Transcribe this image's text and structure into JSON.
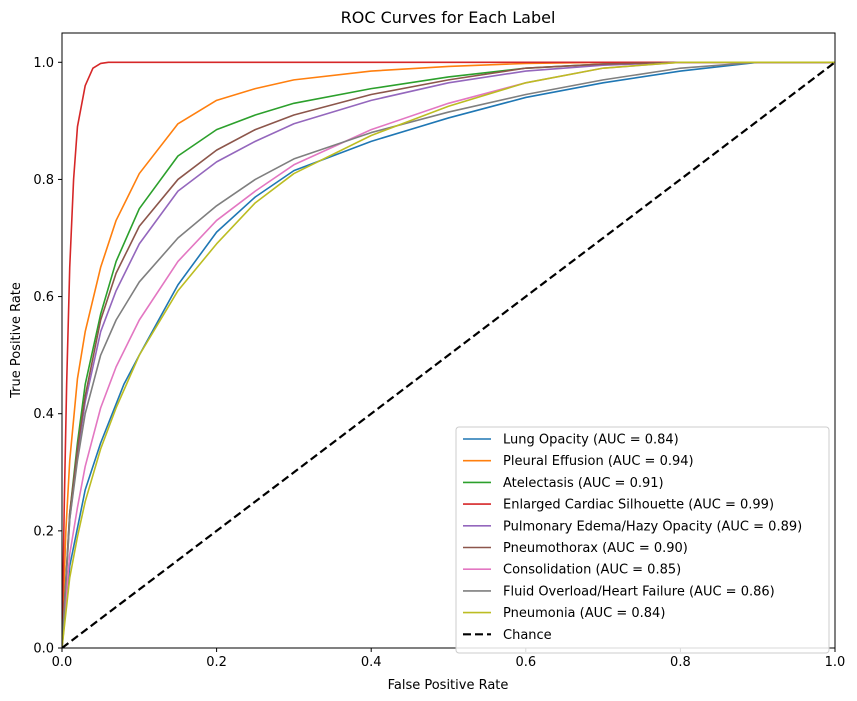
{
  "chart_data": {
    "type": "line",
    "title": "ROC Curves for Each Label",
    "xlabel": "False Positive Rate",
    "ylabel": "True Positive Rate",
    "xlim": [
      0,
      1
    ],
    "ylim": [
      0,
      1.05
    ],
    "xticks": [
      "0.0",
      "0.2",
      "0.4",
      "0.6",
      "0.8",
      "1.0"
    ],
    "yticks": [
      "0.0",
      "0.2",
      "0.4",
      "0.6",
      "0.8",
      "1.0"
    ],
    "grid": false,
    "legend_position": "lower-right",
    "series": [
      {
        "name": "Lung Opacity (AUC = 0.84)",
        "color": "#1f77b4",
        "x": [
          0,
          0.01,
          0.03,
          0.05,
          0.08,
          0.1,
          0.15,
          0.2,
          0.25,
          0.3,
          0.4,
          0.5,
          0.6,
          0.7,
          0.8,
          0.9,
          1.0
        ],
        "y": [
          0,
          0.14,
          0.27,
          0.35,
          0.45,
          0.5,
          0.62,
          0.71,
          0.77,
          0.815,
          0.865,
          0.905,
          0.94,
          0.965,
          0.985,
          1.0,
          1.0
        ]
      },
      {
        "name": "Pleural Effusion (AUC = 0.94)",
        "color": "#ff7f0e",
        "x": [
          0,
          0.005,
          0.01,
          0.02,
          0.03,
          0.05,
          0.07,
          0.1,
          0.15,
          0.2,
          0.25,
          0.3,
          0.4,
          0.5,
          0.6,
          0.7,
          0.8,
          1.0
        ],
        "y": [
          0,
          0.2,
          0.32,
          0.46,
          0.54,
          0.65,
          0.73,
          0.81,
          0.895,
          0.935,
          0.955,
          0.97,
          0.985,
          0.993,
          0.998,
          1.0,
          1.0,
          1.0
        ]
      },
      {
        "name": "Atelectasis (AUC = 0.91)",
        "color": "#2ca02c",
        "x": [
          0,
          0.01,
          0.02,
          0.03,
          0.05,
          0.07,
          0.1,
          0.15,
          0.2,
          0.25,
          0.3,
          0.4,
          0.5,
          0.6,
          0.7,
          0.8,
          1.0
        ],
        "y": [
          0,
          0.23,
          0.35,
          0.45,
          0.57,
          0.66,
          0.75,
          0.84,
          0.885,
          0.91,
          0.93,
          0.955,
          0.975,
          0.99,
          0.997,
          1.0,
          1.0
        ]
      },
      {
        "name": "Enlarged Cardiac Silhouette (AUC = 0.99)",
        "color": "#d62728",
        "x": [
          0,
          0.003,
          0.006,
          0.01,
          0.015,
          0.02,
          0.03,
          0.04,
          0.05,
          0.06,
          1.0
        ],
        "y": [
          0,
          0.25,
          0.45,
          0.65,
          0.8,
          0.89,
          0.96,
          0.99,
          0.998,
          1.0,
          1.0
        ]
      },
      {
        "name": "Pulmonary Edema/Hazy Opacity (AUC = 0.89)",
        "color": "#9467bd",
        "x": [
          0,
          0.01,
          0.02,
          0.03,
          0.05,
          0.07,
          0.1,
          0.15,
          0.2,
          0.25,
          0.3,
          0.4,
          0.5,
          0.6,
          0.7,
          0.8,
          1.0
        ],
        "y": [
          0,
          0.22,
          0.33,
          0.42,
          0.54,
          0.61,
          0.69,
          0.78,
          0.83,
          0.865,
          0.895,
          0.935,
          0.965,
          0.985,
          0.995,
          1.0,
          1.0
        ]
      },
      {
        "name": "Pneumothorax (AUC = 0.90)",
        "color": "#8c564b",
        "x": [
          0,
          0.01,
          0.02,
          0.03,
          0.05,
          0.07,
          0.1,
          0.15,
          0.2,
          0.25,
          0.3,
          0.4,
          0.5,
          0.6,
          0.7,
          0.8,
          1.0
        ],
        "y": [
          0,
          0.23,
          0.34,
          0.43,
          0.56,
          0.64,
          0.72,
          0.8,
          0.85,
          0.885,
          0.91,
          0.945,
          0.97,
          0.99,
          0.997,
          1.0,
          1.0
        ]
      },
      {
        "name": "Consolidation (AUC = 0.85)",
        "color": "#e377c2",
        "x": [
          0,
          0.01,
          0.02,
          0.03,
          0.05,
          0.07,
          0.1,
          0.15,
          0.2,
          0.25,
          0.3,
          0.4,
          0.5,
          0.6,
          0.7,
          0.8,
          1.0
        ],
        "y": [
          0,
          0.16,
          0.24,
          0.31,
          0.41,
          0.48,
          0.56,
          0.66,
          0.73,
          0.78,
          0.825,
          0.885,
          0.93,
          0.965,
          0.99,
          1.0,
          1.0
        ]
      },
      {
        "name": "Fluid Overload/Heart Failure (AUC = 0.86)",
        "color": "#7f7f7f",
        "x": [
          0,
          0.01,
          0.02,
          0.03,
          0.05,
          0.07,
          0.1,
          0.15,
          0.2,
          0.25,
          0.3,
          0.4,
          0.5,
          0.6,
          0.7,
          0.8,
          0.9,
          1.0
        ],
        "y": [
          0,
          0.22,
          0.32,
          0.4,
          0.5,
          0.56,
          0.625,
          0.7,
          0.755,
          0.8,
          0.835,
          0.88,
          0.915,
          0.945,
          0.97,
          0.99,
          1.0,
          1.0
        ]
      },
      {
        "name": "Pneumonia (AUC = 0.84)",
        "color": "#bcbd22",
        "x": [
          0,
          0.01,
          0.02,
          0.03,
          0.05,
          0.07,
          0.1,
          0.15,
          0.2,
          0.25,
          0.3,
          0.4,
          0.5,
          0.6,
          0.7,
          0.8,
          1.0
        ],
        "y": [
          0,
          0.12,
          0.19,
          0.25,
          0.34,
          0.41,
          0.5,
          0.61,
          0.69,
          0.76,
          0.81,
          0.875,
          0.925,
          0.965,
          0.99,
          1.0,
          1.0
        ]
      },
      {
        "name": "Chance",
        "color": "#000000",
        "dashed": true,
        "x": [
          0,
          1
        ],
        "y": [
          0,
          1
        ]
      }
    ]
  }
}
